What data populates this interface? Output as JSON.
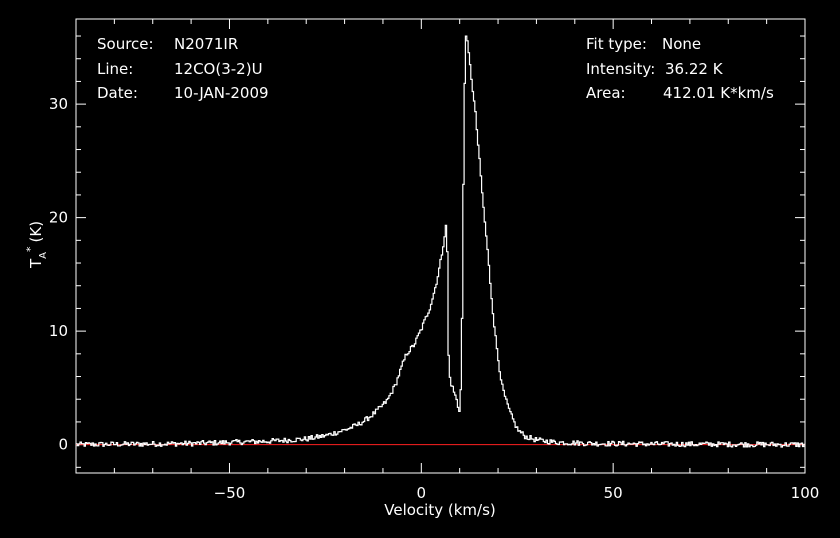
{
  "header_left": {
    "source_key": "Source:",
    "source_val": "N2071IR",
    "line_key": "Line:",
    "line_val": "12CO(3-2)U",
    "date_key": "Date:",
    "date_val": "10-JAN-2009"
  },
  "header_right": {
    "fit_key": "Fit type:",
    "fit_val": "None",
    "intensity_key": "Intensity:",
    "intensity_val": "36.22 K",
    "area_key": "Area:",
    "area_val": "412.01 K*km/s"
  },
  "colors": {
    "background": "#000000",
    "foreground": "#ffffff",
    "baseline": "#ff2020"
  },
  "chart_data": {
    "type": "line",
    "title": "",
    "xlabel": "Velocity (km/s)",
    "ylabel_main": "T",
    "ylabel_sub": "A",
    "ylabel_sup": "*",
    "ylabel_unit": "(K)",
    "xlim": [
      -90,
      100
    ],
    "ylim": [
      -2.5,
      37.5
    ],
    "xticks": [
      -50,
      0,
      50,
      100
    ],
    "xtick_labels": [
      "−50",
      "0",
      "50",
      "100"
    ],
    "yticks": [
      0,
      10,
      20,
      30
    ],
    "ytick_labels": [
      "0",
      "10",
      "20",
      "30"
    ],
    "grid": false,
    "baseline_y": 0,
    "series": [
      {
        "x": [
          -90,
          -60,
          -40,
          -30,
          -25,
          -20,
          -17,
          -15,
          -13,
          -11,
          -9,
          -7,
          -5,
          -4,
          -2,
          0,
          2,
          3,
          4,
          5,
          5.8,
          6.3,
          6.6,
          7.0,
          7.5,
          8.0,
          9.0,
          9.5,
          10.0,
          10.5,
          11.0,
          11.5,
          12.0,
          13.0,
          14.0,
          15.0,
          16.0,
          17.0,
          18.0,
          19.0,
          20.0,
          21.0,
          22.0,
          23.0,
          24.0,
          25.0,
          27.0,
          30.0,
          35.0,
          45.0,
          60.0,
          100.0
        ],
        "y": [
          0,
          0.1,
          0.3,
          0.5,
          0.8,
          1.3,
          1.7,
          2.1,
          2.6,
          3.2,
          3.9,
          5.2,
          7.1,
          8.0,
          8.8,
          10.3,
          12.0,
          13.2,
          14.6,
          16.4,
          18.2,
          19.3,
          17.0,
          6.5,
          5.5,
          5.0,
          4.0,
          3.2,
          3.0,
          12.0,
          30.0,
          36.2,
          35.0,
          32.0,
          29.0,
          25.0,
          21.0,
          17.5,
          13.5,
          10.0,
          7.2,
          5.0,
          3.8,
          2.8,
          2.0,
          1.3,
          0.7,
          0.4,
          0.2,
          0.1,
          0.05,
          0
        ]
      }
    ]
  }
}
